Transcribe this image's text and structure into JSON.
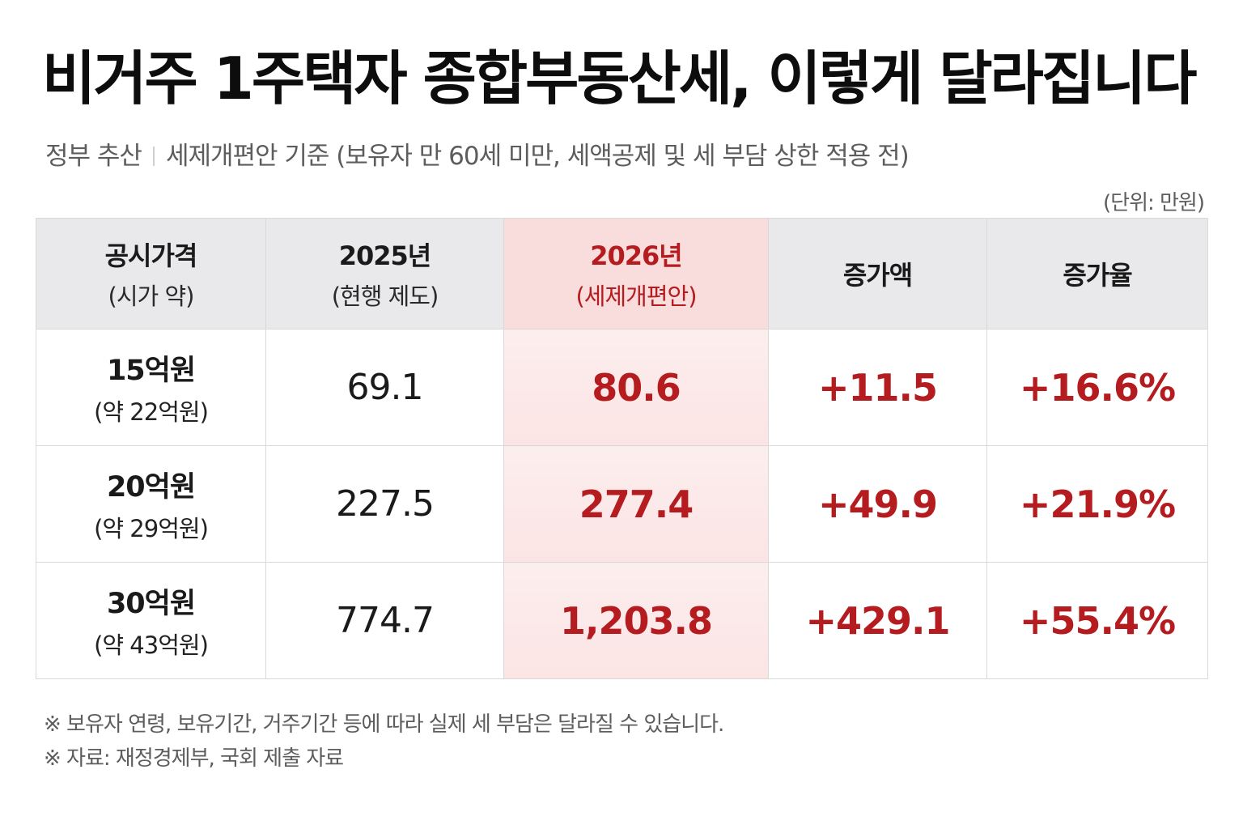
{
  "title": "비거주 1주택자 종합부동산세, 이렇게 달라집니다",
  "subtitle": {
    "source": "정부 추산",
    "basis": "세제개편안 기준 (보유자 만 60세 미만, 세액공제 및 세 부담 상한 적용 전)"
  },
  "unit_label": "(단위: 만원)",
  "table": {
    "headers": [
      {
        "label": "공시가격",
        "sub": "(시가 약)"
      },
      {
        "label": "2025년",
        "sub": "(현행 제도)"
      },
      {
        "label": "2026년",
        "sub": "(세제개편안)"
      },
      {
        "label": "증가액",
        "sub": ""
      },
      {
        "label": "증가율",
        "sub": ""
      }
    ],
    "rows": [
      {
        "price": "15억원",
        "market": "(약 22억원)",
        "current": "69.1",
        "proposed": "80.6",
        "increase": "+11.5",
        "rate": "+16.6%"
      },
      {
        "price": "20억원",
        "market": "(약 29억원)",
        "current": "227.5",
        "proposed": "277.4",
        "increase": "+49.9",
        "rate": "+21.9%"
      },
      {
        "price": "30억원",
        "market": "(약 43억원)",
        "current": "774.7",
        "proposed": "1,203.8",
        "increase": "+429.1",
        "rate": "+55.4%"
      }
    ]
  },
  "notes": [
    "※ 보유자 연령, 보유기간, 거주기간 등에 따라 실제 세 부담은 달라질 수 있습니다.",
    "※ 자료: 재정경제부, 국회 제출 자료"
  ],
  "colors": {
    "accent": "#b51c20",
    "highlight_bg": "#f9dcdc",
    "header_bg": "#e9e9eb"
  }
}
